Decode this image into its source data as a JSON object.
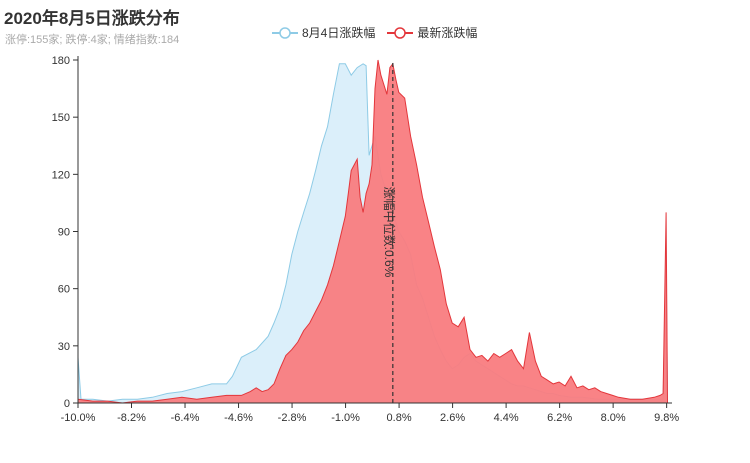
{
  "chart_data": {
    "type": "area",
    "title": "2020年8月5日涨跌分布",
    "subtitle": "涨停:155家; 跌停:4家; 情绪指数:184",
    "xlim": [
      -10.0,
      10.0
    ],
    "ylim": [
      0,
      180
    ],
    "x_tick_labels": [
      "-10.0%",
      "-8.2%",
      "-6.4%",
      "-4.6%",
      "-2.8%",
      "-1.0%",
      "0.8%",
      "2.6%",
      "4.4%",
      "6.2%",
      "8.0%",
      "9.8%"
    ],
    "y_ticks": [
      0,
      30,
      60,
      90,
      120,
      150,
      180
    ],
    "median": {
      "x": 0.6,
      "label": "涨幅中位数:0.6%"
    },
    "series": [
      {
        "name": "8月4日涨跌幅",
        "line_color": "#8ecbe6",
        "fill_color": "#dbeffa",
        "points": [
          [
            -10,
            24
          ],
          [
            -9.9,
            2
          ],
          [
            -9.5,
            2
          ],
          [
            -9,
            1
          ],
          [
            -8.5,
            2
          ],
          [
            -8,
            2
          ],
          [
            -7.5,
            3
          ],
          [
            -7,
            5
          ],
          [
            -6.5,
            6
          ],
          [
            -6,
            8
          ],
          [
            -5.5,
            10
          ],
          [
            -5,
            10
          ],
          [
            -4.8,
            14
          ],
          [
            -4.5,
            24
          ],
          [
            -4,
            28
          ],
          [
            -3.6,
            35
          ],
          [
            -3.4,
            42
          ],
          [
            -3.2,
            50
          ],
          [
            -3.0,
            62
          ],
          [
            -2.8,
            78
          ],
          [
            -2.6,
            90
          ],
          [
            -2.4,
            100
          ],
          [
            -2.2,
            110
          ],
          [
            -2.0,
            122
          ],
          [
            -1.8,
            135
          ],
          [
            -1.6,
            145
          ],
          [
            -1.4,
            162
          ],
          [
            -1.2,
            178
          ],
          [
            -1.0,
            178
          ],
          [
            -0.8,
            172
          ],
          [
            -0.6,
            176
          ],
          [
            -0.4,
            178
          ],
          [
            -0.3,
            177
          ],
          [
            -0.2,
            130
          ],
          [
            0.0,
            140
          ],
          [
            0.2,
            120
          ],
          [
            0.4,
            110
          ],
          [
            0.6,
            100
          ],
          [
            0.8,
            90
          ],
          [
            1.0,
            85
          ],
          [
            1.2,
            78
          ],
          [
            1.4,
            62
          ],
          [
            1.6,
            55
          ],
          [
            1.8,
            45
          ],
          [
            2.0,
            35
          ],
          [
            2.2,
            28
          ],
          [
            2.4,
            22
          ],
          [
            2.6,
            18
          ],
          [
            2.8,
            20
          ],
          [
            3.0,
            24
          ],
          [
            3.2,
            26
          ],
          [
            3.4,
            22
          ],
          [
            3.6,
            20
          ],
          [
            3.8,
            18
          ],
          [
            4.0,
            16
          ],
          [
            4.2,
            14
          ],
          [
            4.4,
            12
          ],
          [
            4.6,
            10
          ],
          [
            4.8,
            9
          ],
          [
            5.0,
            9
          ],
          [
            5.2,
            8
          ],
          [
            5.4,
            7
          ],
          [
            5.6,
            6
          ],
          [
            5.8,
            5
          ],
          [
            6.0,
            5
          ],
          [
            6.2,
            4
          ],
          [
            6.6,
            3
          ],
          [
            7.0,
            3
          ],
          [
            7.5,
            2
          ],
          [
            8.0,
            2
          ],
          [
            8.5,
            2
          ],
          [
            9.0,
            2
          ],
          [
            9.5,
            2
          ],
          [
            9.7,
            2
          ],
          [
            9.8,
            80
          ],
          [
            9.85,
            0
          ]
        ]
      },
      {
        "name": "最新涨跌幅",
        "line_color": "#e3363b",
        "fill_color": "#f97c7f",
        "points": [
          [
            -10,
            2
          ],
          [
            -9.5,
            1
          ],
          [
            -9,
            1
          ],
          [
            -8.5,
            0
          ],
          [
            -8,
            1
          ],
          [
            -7.5,
            1
          ],
          [
            -7,
            2
          ],
          [
            -6.5,
            3
          ],
          [
            -6,
            2
          ],
          [
            -5.5,
            3
          ],
          [
            -5,
            4
          ],
          [
            -4.5,
            4
          ],
          [
            -4.2,
            6
          ],
          [
            -4,
            8
          ],
          [
            -3.8,
            6
          ],
          [
            -3.6,
            7
          ],
          [
            -3.4,
            10
          ],
          [
            -3.2,
            18
          ],
          [
            -3.0,
            25
          ],
          [
            -2.8,
            28
          ],
          [
            -2.6,
            32
          ],
          [
            -2.4,
            38
          ],
          [
            -2.2,
            42
          ],
          [
            -2.0,
            48
          ],
          [
            -1.8,
            54
          ],
          [
            -1.6,
            62
          ],
          [
            -1.4,
            72
          ],
          [
            -1.2,
            85
          ],
          [
            -1.0,
            98
          ],
          [
            -0.9,
            110
          ],
          [
            -0.8,
            122
          ],
          [
            -0.6,
            128
          ],
          [
            -0.5,
            108
          ],
          [
            -0.4,
            100
          ],
          [
            -0.3,
            110
          ],
          [
            -0.2,
            115
          ],
          [
            -0.1,
            125
          ],
          [
            0.0,
            165
          ],
          [
            0.1,
            180
          ],
          [
            0.2,
            172
          ],
          [
            0.4,
            162
          ],
          [
            0.5,
            176
          ],
          [
            0.6,
            178
          ],
          [
            0.7,
            170
          ],
          [
            0.8,
            163
          ],
          [
            1.0,
            160
          ],
          [
            1.2,
            140
          ],
          [
            1.4,
            125
          ],
          [
            1.6,
            108
          ],
          [
            1.8,
            95
          ],
          [
            2.0,
            82
          ],
          [
            2.2,
            70
          ],
          [
            2.4,
            52
          ],
          [
            2.6,
            42
          ],
          [
            2.8,
            40
          ],
          [
            3.0,
            45
          ],
          [
            3.2,
            28
          ],
          [
            3.4,
            24
          ],
          [
            3.6,
            25
          ],
          [
            3.8,
            22
          ],
          [
            4.0,
            26
          ],
          [
            4.2,
            24
          ],
          [
            4.4,
            26
          ],
          [
            4.6,
            28
          ],
          [
            4.8,
            22
          ],
          [
            5.0,
            18
          ],
          [
            5.2,
            37
          ],
          [
            5.4,
            22
          ],
          [
            5.6,
            14
          ],
          [
            5.8,
            12
          ],
          [
            6.0,
            10
          ],
          [
            6.2,
            11
          ],
          [
            6.4,
            9
          ],
          [
            6.6,
            14
          ],
          [
            6.8,
            8
          ],
          [
            7.0,
            9
          ],
          [
            7.2,
            7
          ],
          [
            7.4,
            8
          ],
          [
            7.6,
            6
          ],
          [
            7.8,
            5
          ],
          [
            8.0,
            4
          ],
          [
            8.2,
            3
          ],
          [
            8.6,
            2
          ],
          [
            9.0,
            2
          ],
          [
            9.4,
            3
          ],
          [
            9.6,
            4
          ],
          [
            9.7,
            5
          ],
          [
            9.8,
            100
          ],
          [
            9.85,
            0
          ]
        ]
      }
    ]
  }
}
